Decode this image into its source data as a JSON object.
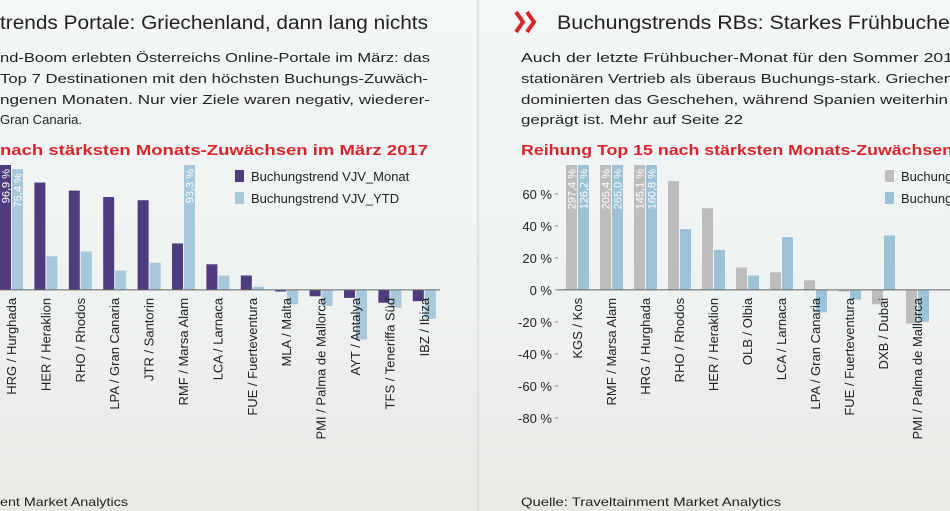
{
  "chart_data": [
    {
      "type": "bar",
      "title": "trends Portale: Griechenland, dann lang nichts",
      "text_lines": [
        "nd-Boom erlebten Österreichs Online-Portale im März: das",
        "Top 7 Destinationen mit den höchsten Buchungs-Zuwäch-",
        "ngenen Monaten. Nur vier Ziele waren negativ, wiederer-",
        "Gran Canaria."
      ],
      "subtitle": "nach stärksten Monats-Zuwächsen im März 2017",
      "source": "ent Market Analytics",
      "categories": [
        "HRG / Hurghada",
        "HER / Heraklion",
        "RHO / Rhodos",
        "LPA / Gran Canaria",
        "JTR / Santorin",
        "RMF / Marsa Alam",
        "LCA / Larnaca",
        "FUE / Fuerteventura",
        "MLA / Malta",
        "PMI / Palma de Mallorca",
        "AYT / Antalya",
        "TFS / Teneriffa Süd",
        "IBZ / Ibiza"
      ],
      "series": [
        {
          "name": "Buchungstrend VJV_Monat",
          "color": "#4e3c7e",
          "values": [
            96.9,
            67,
            62,
            58,
            56,
            29,
            16,
            9,
            -1,
            -4,
            -5,
            -8,
            -7
          ],
          "value_labels": [
            "96,9 %",
            null,
            null,
            null,
            null,
            null,
            null,
            null,
            null,
            null,
            null,
            null,
            null
          ]
        },
        {
          "name": "Buchungstrend VJV_YTD",
          "color": "#a7c7db",
          "values": [
            75.4,
            21,
            24,
            12,
            17,
            93.3,
            9,
            2,
            -9,
            -10,
            -31,
            -11,
            -18
          ],
          "value_labels": [
            "75,4 %",
            null,
            null,
            null,
            null,
            "93,3 %",
            null,
            null,
            null,
            null,
            null,
            null,
            null
          ]
        }
      ],
      "ylim": [
        -80,
        78
      ]
    },
    {
      "type": "bar",
      "title": "Buchungstrends RBs: Starkes Frühbucher",
      "text_lines": [
        "Auch der letzte Frühbucher-Monat für den Sommer 201",
        "stationären Vertrieb als überaus Buchungs-stark. Griechen",
        "dominierten das Geschehen, während Spanien weiterhin",
        "geprägt ist. Mehr auf Seite 22"
      ],
      "subtitle": "Reihung Top 15 nach stärksten Monats-Zuwächsen",
      "source": "Quelle: Traveltainment Market Analytics",
      "categories": [
        "KGS / Kos",
        "RMF / Marsa Alam",
        "HRG / Hurghada",
        "RHO / Rhodos",
        "HER / Heraklion",
        "OLB / Olbia",
        "LCA / Larnaca",
        "LPA / Gran Canaria",
        "FUE / Fuerteventura",
        "DXB / Dubai",
        "PMI / Palma de Mallorca"
      ],
      "series": [
        {
          "name": "Buchungstrend VJV_Monat",
          "color": "#bdbdbd",
          "values": [
            297.4,
            205.4,
            145.1,
            68,
            51,
            14,
            11,
            6,
            -1,
            -9,
            -21
          ],
          "value_labels": [
            "297,4 %",
            "205,4 %",
            "145,1 %",
            null,
            null,
            null,
            null,
            null,
            null,
            null,
            null
          ]
        },
        {
          "name": "Buchungstrend VJV_YTD",
          "color": "#9cc2d8",
          "values": [
            126.2,
            265.0,
            160.8,
            38,
            25,
            9,
            33,
            -14,
            -6,
            34,
            -20
          ],
          "value_labels": [
            "126,2 %",
            "265,0 %",
            "160,8 %",
            null,
            null,
            null,
            null,
            null,
            null,
            null,
            null
          ]
        }
      ],
      "ylim": [
        -80,
        78
      ],
      "yticks": [
        {
          "value": 60,
          "label": "60 %"
        },
        {
          "value": 40,
          "label": "40 %"
        },
        {
          "value": 20,
          "label": "20 %"
        },
        {
          "value": 0,
          "label": "0 %"
        },
        {
          "value": -20,
          "label": "-20 %"
        },
        {
          "value": -40,
          "label": "-40 %"
        },
        {
          "value": -60,
          "label": "-60 %"
        },
        {
          "value": -80,
          "label": "-80 %"
        }
      ]
    }
  ]
}
